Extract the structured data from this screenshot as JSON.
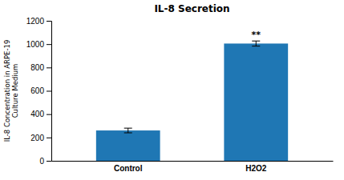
{
  "chart_data": {
    "type": "bar",
    "title": "IL-8 Secretion",
    "categories": [
      "Control",
      "H2O2"
    ],
    "values": [
      260,
      1005
    ],
    "errors": [
      20,
      22
    ],
    "ylabel": [
      "IL-8 Concentration in ARPE-19",
      "Culture Medium"
    ],
    "ylim": [
      0,
      1200
    ],
    "yticks": [
      0,
      200,
      400,
      600,
      800,
      1000,
      1200
    ],
    "annotations": [
      {
        "text": "**",
        "x": "H2O2"
      }
    ],
    "grid": false
  }
}
